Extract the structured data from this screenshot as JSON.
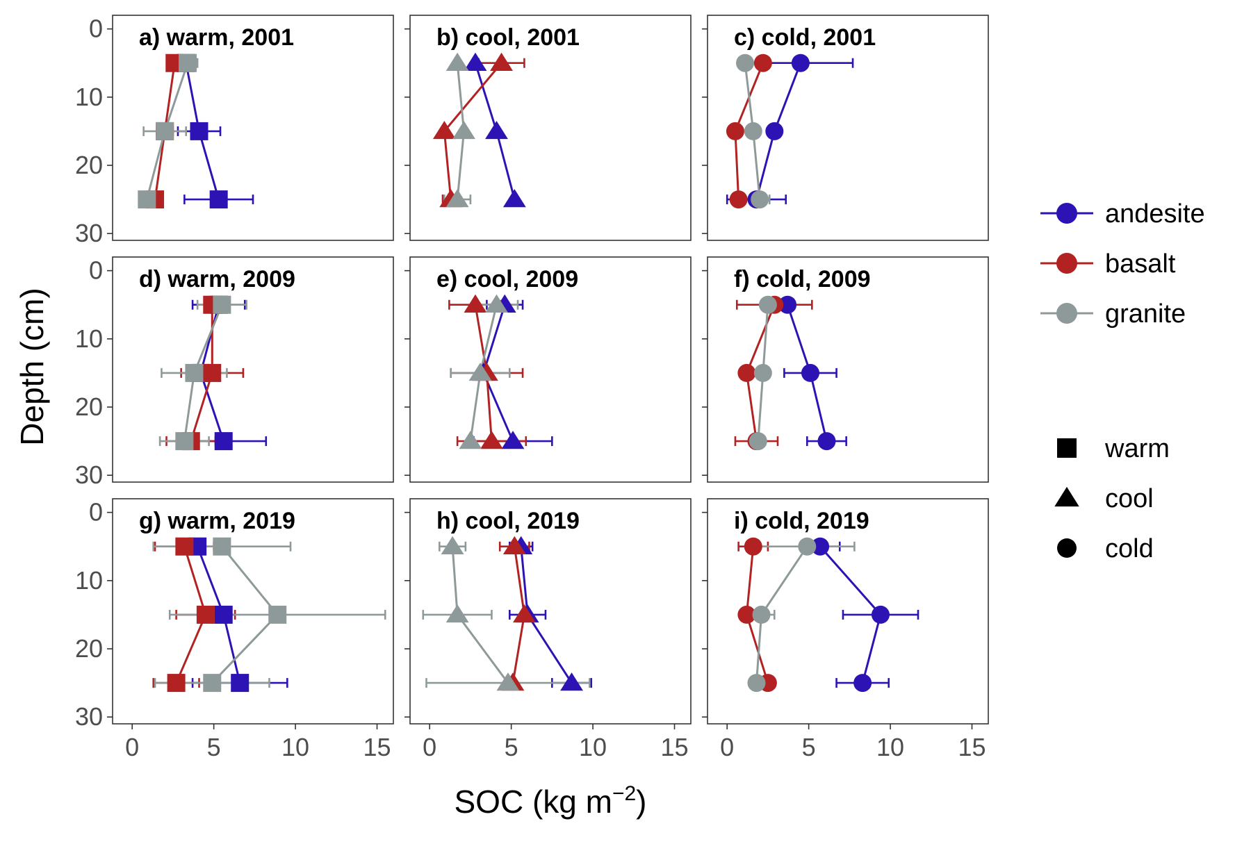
{
  "chart_data": {
    "type": "scatter",
    "xlabel": "SOC (kg m",
    "xlabel_superscript": "−2",
    "xlabel_suffix": ")",
    "ylabel": "Depth (cm)",
    "xlim": [
      -1.2,
      16.0
    ],
    "ylim": [
      31,
      -2
    ],
    "x_ticks": [
      0,
      5,
      10,
      15
    ],
    "y_ticks": [
      0,
      10,
      20,
      30
    ],
    "grid": false,
    "depths": [
      5,
      15,
      25
    ],
    "colors": {
      "andesite": "#2d12b4",
      "basalt": "#b22222",
      "granite": "#8e9a99"
    },
    "legend_lithology": [
      "andesite",
      "basalt",
      "granite"
    ],
    "legend_climate": [
      "warm",
      "cool",
      "cold"
    ],
    "panels": [
      {
        "title": "a) warm, 2001",
        "climate": "warm",
        "series": [
          {
            "name": "andesite",
            "x": [
              3.3,
              4.1,
              5.3
            ],
            "err": [
              0,
              1.3,
              2.1
            ]
          },
          {
            "name": "basalt",
            "x": [
              2.6,
              2.0,
              1.4
            ],
            "err": [
              0,
              0.5,
              0.4
            ]
          },
          {
            "name": "granite",
            "x": [
              3.4,
              2.0,
              0.9
            ],
            "err": [
              0.6,
              1.3,
              0.3
            ]
          }
        ]
      },
      {
        "title": "b) cool, 2001",
        "climate": "cool",
        "series": [
          {
            "name": "andesite",
            "x": [
              2.8,
              4.1,
              5.2
            ],
            "err": [
              0,
              0,
              0
            ]
          },
          {
            "name": "basalt",
            "x": [
              4.4,
              0.9,
              1.3
            ],
            "err": [
              1.4,
              0,
              0.5
            ]
          },
          {
            "name": "granite",
            "x": [
              1.7,
              2.1,
              1.7
            ],
            "err": [
              0,
              0,
              0.8
            ]
          }
        ]
      },
      {
        "title": "c) cold, 2001",
        "climate": "cold",
        "series": [
          {
            "name": "andesite",
            "x": [
              4.5,
              2.9,
              1.8
            ],
            "err": [
              3.2,
              0,
              1.8
            ]
          },
          {
            "name": "basalt",
            "x": [
              2.2,
              0.5,
              0.7
            ],
            "err": [
              0,
              0,
              0
            ]
          },
          {
            "name": "granite",
            "x": [
              1.1,
              1.6,
              2.0
            ],
            "err": [
              0,
              0,
              0.6
            ]
          }
        ]
      },
      {
        "title": "d) warm, 2009",
        "climate": "warm",
        "series": [
          {
            "name": "andesite",
            "x": [
              5.3,
              4.2,
              5.6
            ],
            "err": [
              1.6,
              0,
              2.6
            ]
          },
          {
            "name": "basalt",
            "x": [
              4.9,
              4.9,
              3.6
            ],
            "err": [
              0,
              1.9,
              1.5
            ]
          },
          {
            "name": "granite",
            "x": [
              5.5,
              3.8,
              3.2
            ],
            "err": [
              1.5,
              2.0,
              1.5
            ]
          }
        ]
      },
      {
        "title": "e) cool, 2009",
        "climate": "cool",
        "series": [
          {
            "name": "andesite",
            "x": [
              4.6,
              3.3,
              5.1
            ],
            "err": [
              1.1,
              0,
              2.4
            ]
          },
          {
            "name": "basalt",
            "x": [
              2.8,
              3.5,
              3.8
            ],
            "err": [
              1.6,
              2.2,
              2.1
            ]
          },
          {
            "name": "granite",
            "x": [
              4.1,
              3.1,
              2.5
            ],
            "err": [
              1.3,
              1.8,
              0
            ]
          }
        ]
      },
      {
        "title": "f) cold, 2009",
        "climate": "cold",
        "series": [
          {
            "name": "andesite",
            "x": [
              3.7,
              5.1,
              6.1
            ],
            "err": [
              0,
              1.6,
              1.2
            ]
          },
          {
            "name": "basalt",
            "x": [
              2.9,
              1.2,
              1.8
            ],
            "err": [
              2.3,
              0,
              1.3
            ]
          },
          {
            "name": "granite",
            "x": [
              2.5,
              2.2,
              1.9
            ],
            "err": [
              0,
              0,
              0
            ]
          }
        ]
      },
      {
        "title": "g) warm, 2019",
        "climate": "warm",
        "series": [
          {
            "name": "andesite",
            "x": [
              4.0,
              5.6,
              6.6
            ],
            "err": [
              0,
              0,
              2.9
            ]
          },
          {
            "name": "basalt",
            "x": [
              3.2,
              4.5,
              2.7
            ],
            "err": [
              1.8,
              1.8,
              1.4
            ]
          },
          {
            "name": "granite",
            "x": [
              5.5,
              8.9,
              4.9
            ],
            "err": [
              4.2,
              6.6,
              3.5
            ]
          }
        ]
      },
      {
        "title": "h) cool, 2019",
        "climate": "cool",
        "series": [
          {
            "name": "andesite",
            "x": [
              5.6,
              6.0,
              8.7
            ],
            "err": [
              0.7,
              1.1,
              1.2
            ]
          },
          {
            "name": "basalt",
            "x": [
              5.2,
              5.8,
              5.1
            ],
            "err": [
              0.9,
              0,
              0
            ]
          },
          {
            "name": "granite",
            "x": [
              1.4,
              1.7,
              4.8
            ],
            "err": [
              0.8,
              2.1,
              5.0
            ]
          }
        ]
      },
      {
        "title": "i) cold, 2019",
        "climate": "cold",
        "series": [
          {
            "name": "andesite",
            "x": [
              5.7,
              9.4,
              8.3
            ],
            "err": [
              1.2,
              2.3,
              1.6
            ]
          },
          {
            "name": "basalt",
            "x": [
              1.6,
              1.2,
              2.5
            ],
            "err": [
              0.9,
              0,
              0
            ]
          },
          {
            "name": "granite",
            "x": [
              4.9,
              2.1,
              1.8
            ],
            "err": [
              2.9,
              0.8,
              0
            ]
          }
        ]
      }
    ]
  }
}
